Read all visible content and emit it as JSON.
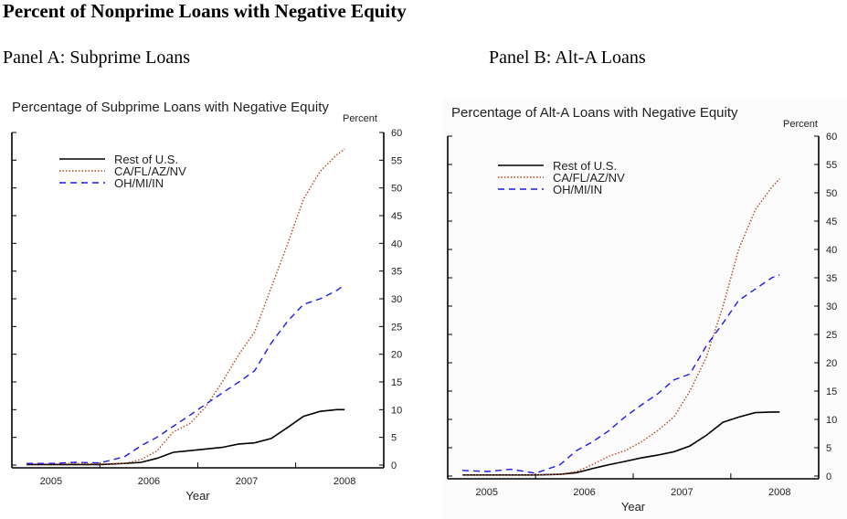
{
  "page": {
    "title": "Percent of Nonprime Loans with Negative Equity",
    "panel_a_label": "Panel A: Subprime Loans",
    "panel_b_label": "Panel B: Alt-A Loans"
  },
  "colors": {
    "rest_of_us": "#000000",
    "ca_fl_az_nv": "#b5451b",
    "oh_mi_in": "#1a1aee",
    "axis": "#000000"
  },
  "chart_data": [
    {
      "type": "line",
      "title": "Percentage of Subprime Loans with Negative Equity",
      "xlabel": "Year",
      "ylabel": "Percent",
      "x_ticks": [
        "2005",
        "2006",
        "2007",
        "2008"
      ],
      "x_tick_values": [
        2005.0,
        2006.0,
        2007.0,
        2008.0
      ],
      "xlim": [
        2004.6,
        2008.4
      ],
      "ylim": [
        0,
        60
      ],
      "y_ticks": [
        0,
        5,
        10,
        15,
        20,
        25,
        30,
        35,
        40,
        45,
        50,
        55,
        60
      ],
      "grid": false,
      "legend": "top-left",
      "x": [
        2004.75,
        2005.0,
        2005.25,
        2005.5,
        2005.75,
        2005.92,
        2006.08,
        2006.25,
        2006.42,
        2006.58,
        2006.75,
        2006.92,
        2007.08,
        2007.25,
        2007.42,
        2007.58,
        2007.75,
        2007.92,
        2008.0
      ],
      "series": [
        {
          "name": "Rest of U.S.",
          "style": "solid",
          "values": [
            0.1,
            0.1,
            0.1,
            0.1,
            0.3,
            0.5,
            1.2,
            2.3,
            2.6,
            2.9,
            3.2,
            3.8,
            4.0,
            4.8,
            6.8,
            8.8,
            9.7,
            10.0,
            10.0
          ]
        },
        {
          "name": "CA/FL/AZ/NV",
          "style": "dotted",
          "values": [
            0.2,
            0.2,
            0.3,
            0.2,
            0.3,
            1.0,
            2.5,
            6.0,
            7.5,
            10.5,
            15.0,
            20.0,
            24.0,
            32.0,
            40.0,
            48.0,
            53.0,
            56.0,
            57.0
          ]
        },
        {
          "name": "OH/MI/IN",
          "style": "dashed",
          "values": [
            0.3,
            0.3,
            0.5,
            0.4,
            1.5,
            3.5,
            5.0,
            7.0,
            9.0,
            11.0,
            13.0,
            15.0,
            17.0,
            22.0,
            26.0,
            29.0,
            30.0,
            31.5,
            32.5
          ]
        }
      ]
    },
    {
      "type": "line",
      "title": "Percentage of Alt-A Loans with Negative Equity",
      "xlabel": "Year",
      "ylabel": "Percent",
      "x_ticks": [
        "2005",
        "2006",
        "2007",
        "2008"
      ],
      "x_tick_values": [
        2005.0,
        2006.0,
        2007.0,
        2008.0
      ],
      "xlim": [
        2004.6,
        2008.4
      ],
      "ylim": [
        0,
        60
      ],
      "y_ticks": [
        0,
        5,
        10,
        15,
        20,
        25,
        30,
        35,
        40,
        45,
        50,
        55,
        60
      ],
      "grid": false,
      "legend": "top-left",
      "x": [
        2004.75,
        2005.0,
        2005.25,
        2005.5,
        2005.75,
        2005.92,
        2006.08,
        2006.25,
        2006.42,
        2006.58,
        2006.75,
        2006.92,
        2007.08,
        2007.25,
        2007.42,
        2007.58,
        2007.75,
        2007.92,
        2008.0
      ],
      "series": [
        {
          "name": "Rest of U.S.",
          "style": "solid",
          "values": [
            0.2,
            0.2,
            0.2,
            0.2,
            0.3,
            0.6,
            1.3,
            2.0,
            2.6,
            3.2,
            3.7,
            4.3,
            5.3,
            7.2,
            9.5,
            10.4,
            11.2,
            11.3,
            11.3
          ]
        },
        {
          "name": "CA/FL/AZ/NV",
          "style": "dotted",
          "values": [
            0.2,
            0.2,
            0.2,
            0.2,
            0.3,
            0.8,
            2.0,
            3.5,
            4.5,
            6.0,
            8.0,
            10.5,
            15.0,
            21.0,
            30.0,
            40.0,
            47.0,
            51.0,
            52.5
          ]
        },
        {
          "name": "OH/MI/IN",
          "style": "dashed",
          "values": [
            1.0,
            0.8,
            1.2,
            0.5,
            2.0,
            4.5,
            6.0,
            8.0,
            10.5,
            12.5,
            14.5,
            17.0,
            18.0,
            23.0,
            27.0,
            31.0,
            33.0,
            35.0,
            35.5
          ]
        }
      ]
    }
  ]
}
